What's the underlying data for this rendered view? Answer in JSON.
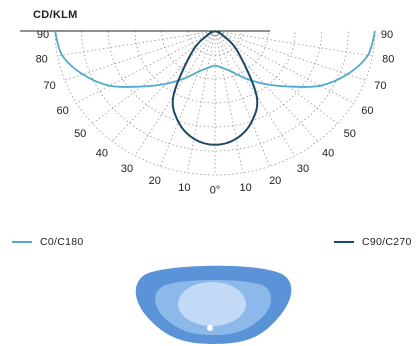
{
  "chart_data": {
    "type": "polar",
    "unit_label": "CD/KLM",
    "angle_labels": [
      "90",
      "80",
      "70",
      "60",
      "50",
      "40",
      "30",
      "20",
      "10",
      "0°",
      "10",
      "20",
      "30",
      "40",
      "50",
      "60",
      "70",
      "80",
      "90"
    ],
    "series": [
      {
        "name": "C0/C180",
        "color": "#4ea9cc",
        "points": [
          [
            -90,
            1.0
          ],
          [
            -80,
            0.97
          ],
          [
            -70,
            0.88
          ],
          [
            -60,
            0.76
          ],
          [
            -50,
            0.6
          ],
          [
            -40,
            0.48
          ],
          [
            -30,
            0.38
          ],
          [
            -20,
            0.3
          ],
          [
            -10,
            0.26
          ],
          [
            0,
            0.24
          ],
          [
            10,
            0.26
          ],
          [
            20,
            0.3
          ],
          [
            30,
            0.38
          ],
          [
            40,
            0.48
          ],
          [
            50,
            0.6
          ],
          [
            60,
            0.76
          ],
          [
            70,
            0.88
          ],
          [
            80,
            0.97
          ],
          [
            90,
            1.0
          ]
        ]
      },
      {
        "name": "C90/C270",
        "color": "#1d4a63",
        "points": [
          [
            -90,
            0.0
          ],
          [
            -60,
            0.05
          ],
          [
            -45,
            0.2
          ],
          [
            -30,
            0.52
          ],
          [
            -20,
            0.67
          ],
          [
            -10,
            0.76
          ],
          [
            0,
            0.79
          ],
          [
            10,
            0.76
          ],
          [
            20,
            0.67
          ],
          [
            30,
            0.52
          ],
          [
            45,
            0.2
          ],
          [
            60,
            0.05
          ],
          [
            90,
            0.0
          ]
        ]
      }
    ],
    "grid": true
  },
  "beam_colors": [
    "#5b93d9",
    "#8db8ea",
    "#c2daf5"
  ]
}
